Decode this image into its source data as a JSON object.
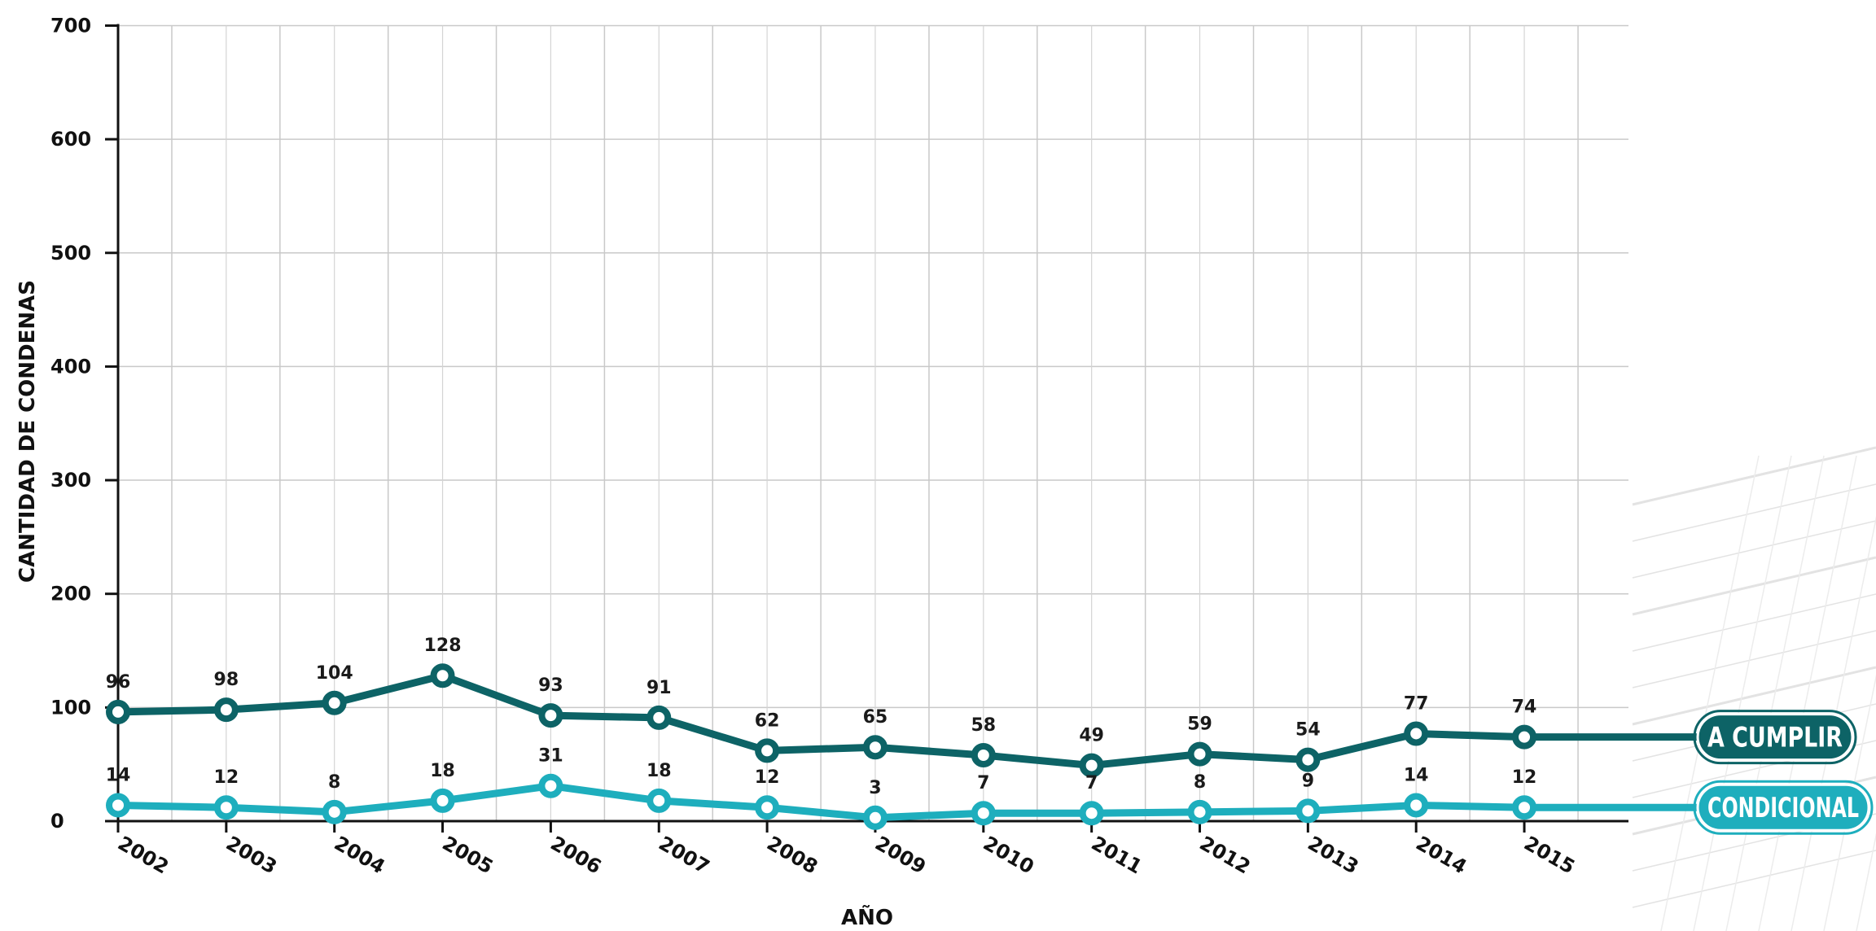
{
  "chart_data": {
    "type": "line",
    "categories": [
      "2002",
      "2003",
      "2004",
      "2005",
      "2006",
      "2007",
      "2008",
      "2009",
      "2010",
      "2011",
      "2012",
      "2013",
      "2014",
      "2015"
    ],
    "series": [
      {
        "name": "A CUMPLIR",
        "color": "#0d6366",
        "values": [
          96,
          98,
          104,
          128,
          93,
          91,
          62,
          65,
          58,
          49,
          59,
          54,
          77,
          74
        ]
      },
      {
        "name": "CONDICIONAL",
        "color": "#1eaebd",
        "values": [
          14,
          12,
          8,
          18,
          31,
          18,
          12,
          3,
          7,
          7,
          8,
          9,
          14,
          12
        ]
      }
    ],
    "xlabel": "AÑO",
    "ylabel": "CANTIDAD DE CONDENAS",
    "ylim": [
      0,
      700
    ],
    "yticks": [
      0,
      100,
      200,
      300,
      400,
      500,
      600,
      700
    ],
    "grid": true,
    "legend": "right"
  }
}
